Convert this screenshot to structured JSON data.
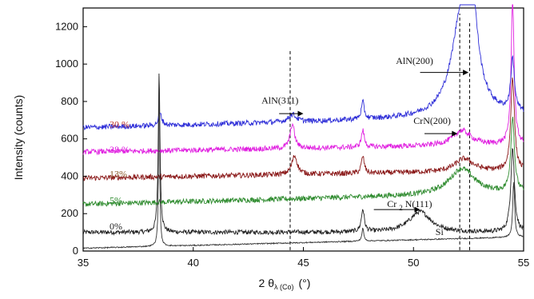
{
  "chart_data": {
    "type": "line",
    "xlabel_main": "2 θ",
    "xlabel_sub": "λ (Co)",
    "xlabel_unit": "(°)",
    "ylabel": "Intensity (counts)",
    "xlim": [
      35,
      55
    ],
    "ylim": [
      0,
      1300
    ],
    "xticks": [
      35,
      40,
      45,
      50,
      55
    ],
    "yticks": [
      0,
      200,
      400,
      600,
      800,
      1000,
      1200
    ],
    "grid": false,
    "series": [
      {
        "name": "0%",
        "color": "#222222",
        "baseline": 100,
        "noise": 12,
        "slope": 0,
        "peaks": [
          {
            "x": 38.45,
            "height": 850,
            "width": 0.05
          },
          {
            "x": 47.7,
            "height": 120,
            "width": 0.08
          },
          {
            "x": 50.3,
            "height": 110,
            "width": 0.6
          },
          {
            "x": 54.5,
            "height": 450,
            "width": 0.1
          }
        ]
      },
      {
        "name": "5%",
        "color": "#2e8b2e",
        "baseline": 250,
        "noise": 14,
        "slope": 3,
        "peaks": [
          {
            "x": 52.2,
            "height": 140,
            "width": 0.7
          },
          {
            "x": 54.5,
            "height": 400,
            "width": 0.1
          }
        ]
      },
      {
        "name": "13%",
        "color": "#8b1a1a",
        "baseline": 390,
        "noise": 14,
        "slope": 2,
        "peaks": [
          {
            "x": 44.6,
            "height": 100,
            "width": 0.15
          },
          {
            "x": 47.7,
            "height": 90,
            "width": 0.08
          },
          {
            "x": 52.3,
            "height": 70,
            "width": 0.5
          },
          {
            "x": 54.5,
            "height": 500,
            "width": 0.1
          }
        ]
      },
      {
        "name": "28%",
        "color": "#e020e0",
        "baseline": 530,
        "noise": 14,
        "slope": 2,
        "peaks": [
          {
            "x": 44.5,
            "height": 130,
            "width": 0.12
          },
          {
            "x": 47.7,
            "height": 90,
            "width": 0.08
          },
          {
            "x": 52.2,
            "height": 80,
            "width": 0.5
          },
          {
            "x": 54.5,
            "height": 780,
            "width": 0.08
          }
        ]
      },
      {
        "name": "30%",
        "color": "#2f2fd8",
        "baseline": 660,
        "noise": 14,
        "slope": 3,
        "peaks": [
          {
            "x": 38.5,
            "height": 60,
            "width": 0.1
          },
          {
            "x": 44.5,
            "height": 40,
            "width": 0.2
          },
          {
            "x": 47.7,
            "height": 90,
            "width": 0.08
          },
          {
            "x": 52.2,
            "height": 520,
            "width": 0.55
          },
          {
            "x": 52.65,
            "height": 460,
            "width": 0.3
          },
          {
            "x": 54.5,
            "height": 280,
            "width": 0.1
          }
        ]
      },
      {
        "name": "Si",
        "color": "#333333",
        "baseline": 15,
        "noise": 3,
        "slope": 3,
        "peaks": [
          {
            "x": 38.45,
            "height": 930,
            "width": 0.03
          },
          {
            "x": 47.7,
            "height": 70,
            "width": 0.05
          },
          {
            "x": 54.55,
            "height": 300,
            "width": 0.05
          }
        ]
      }
    ],
    "series_labels": [
      {
        "text": "30 %",
        "color": "#c0392b",
        "x": 36.2,
        "y": 660
      },
      {
        "text": "28 %",
        "color": "#e020e0",
        "x": 36.2,
        "y": 525
      },
      {
        "text": "13%",
        "color": "#8b5a2b",
        "x": 36.2,
        "y": 395
      },
      {
        "text": "5%",
        "color": "#2e8b2e",
        "x": 36.2,
        "y": 255
      },
      {
        "text": "0%",
        "color": "#222222",
        "x": 36.2,
        "y": 115
      }
    ],
    "annotations": [
      {
        "text": "AlN(311)",
        "label_x": 43.1,
        "label_y": 790,
        "arrow_from": 43.9,
        "arrow_to": 45.0,
        "arrow_y": 735
      },
      {
        "text": "AlN(200)",
        "label_x": 49.2,
        "label_y": 1000,
        "arrow_from": 50.3,
        "arrow_to": 52.5,
        "arrow_y": 955
      },
      {
        "text": "CrN(200)",
        "label_x": 50.0,
        "label_y": 680,
        "arrow_from": 50.5,
        "arrow_to": 52.0,
        "arrow_y": 628
      },
      {
        "text": "Cr",
        "sub": "2",
        "rest": "N(111)",
        "label_x": 48.8,
        "label_y": 235,
        "arrow_from": 48.2,
        "arrow_to": 50.3,
        "arrow_y": 222
      },
      {
        "text": "Si",
        "label_x": 51.0,
        "label_y": 85
      }
    ],
    "reference_lines": [
      {
        "x": 44.4,
        "y_from": 5,
        "y_to": 1070
      },
      {
        "x": 52.1,
        "y_from": 5,
        "y_to": 1270
      },
      {
        "x": 52.55,
        "y_from": 5,
        "y_to": 1230
      }
    ]
  }
}
